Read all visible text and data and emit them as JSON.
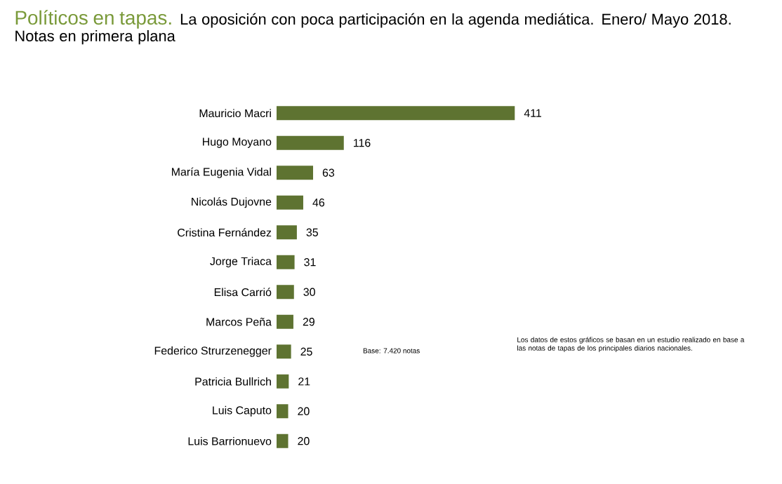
{
  "chart_data": {
    "type": "bar",
    "orientation": "horizontal",
    "title": "Políticos en tapas.",
    "subtitle": "La oposición con poca participación en la agenda mediática. Enero/ Mayo 2018. Notas en primera plana",
    "categories": [
      "Mauricio Macri",
      "Hugo Moyano",
      "María Eugenia Vidal",
      "Nicolás Dujovne",
      "Cristina Fernández",
      "Jorge Triaca",
      "Elisa Carrió",
      "Marcos Peña",
      "Federico Strurzenegger",
      "Patricia Bullrich",
      "Luis Caputo",
      "Luis Barrionuevo"
    ],
    "values": [
      411,
      116,
      63,
      46,
      35,
      31,
      30,
      29,
      25,
      21,
      20,
      20
    ],
    "color": "#5e7331",
    "data_labels": true,
    "annotations": [
      "Base: 7.420 notas",
      "Los datos de estos gráficos se basan en un estudio realizado en base a las notas de tapas de los principales diarios nacionales."
    ]
  }
}
